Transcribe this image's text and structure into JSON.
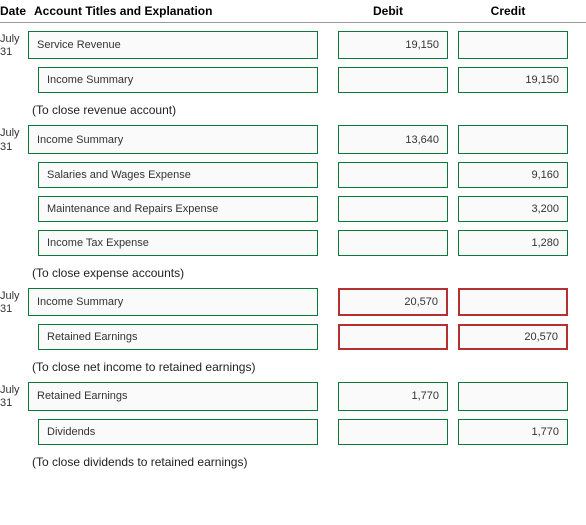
{
  "headers": {
    "date": "Date",
    "title": "Account Titles and Explanation",
    "debit": "Debit",
    "credit": "Credit"
  },
  "colors": {
    "box_border": "#0a7a3a",
    "error_border": "#b53030",
    "box_bg": "#fafafa"
  },
  "sections": [
    {
      "date": "July 31",
      "rows": [
        {
          "title": "Service Revenue",
          "debit": "19,150",
          "credit": "",
          "indent": false,
          "error": false
        },
        {
          "title": "Income Summary",
          "debit": "",
          "credit": "19,150",
          "indent": true,
          "error": false
        }
      ],
      "explanation": "(To close revenue account)"
    },
    {
      "date": "July 31",
      "rows": [
        {
          "title": "Income Summary",
          "debit": "13,640",
          "credit": "",
          "indent": false,
          "error": false
        },
        {
          "title": "Salaries and Wages Expense",
          "debit": "",
          "credit": "9,160",
          "indent": true,
          "error": false
        },
        {
          "title": "Maintenance and Repairs Expense",
          "debit": "",
          "credit": "3,200",
          "indent": true,
          "error": false
        },
        {
          "title": "Income Tax Expense",
          "debit": "",
          "credit": "1,280",
          "indent": true,
          "error": false
        }
      ],
      "explanation": "(To close expense accounts)"
    },
    {
      "date": "July 31",
      "rows": [
        {
          "title": "Income Summary",
          "debit": "20,570",
          "credit": "",
          "indent": false,
          "error": true
        },
        {
          "title": "Retained Earnings",
          "debit": "",
          "credit": "20,570",
          "indent": true,
          "error": true
        }
      ],
      "explanation": "(To close net income to retained earnings)"
    },
    {
      "date": "July 31",
      "rows": [
        {
          "title": "Retained Earnings",
          "debit": "1,770",
          "credit": "",
          "indent": false,
          "error": false
        },
        {
          "title": "Dividends",
          "debit": "",
          "credit": "1,770",
          "indent": true,
          "error": false
        }
      ],
      "explanation": "(To close dividends to retained earnings)"
    }
  ]
}
